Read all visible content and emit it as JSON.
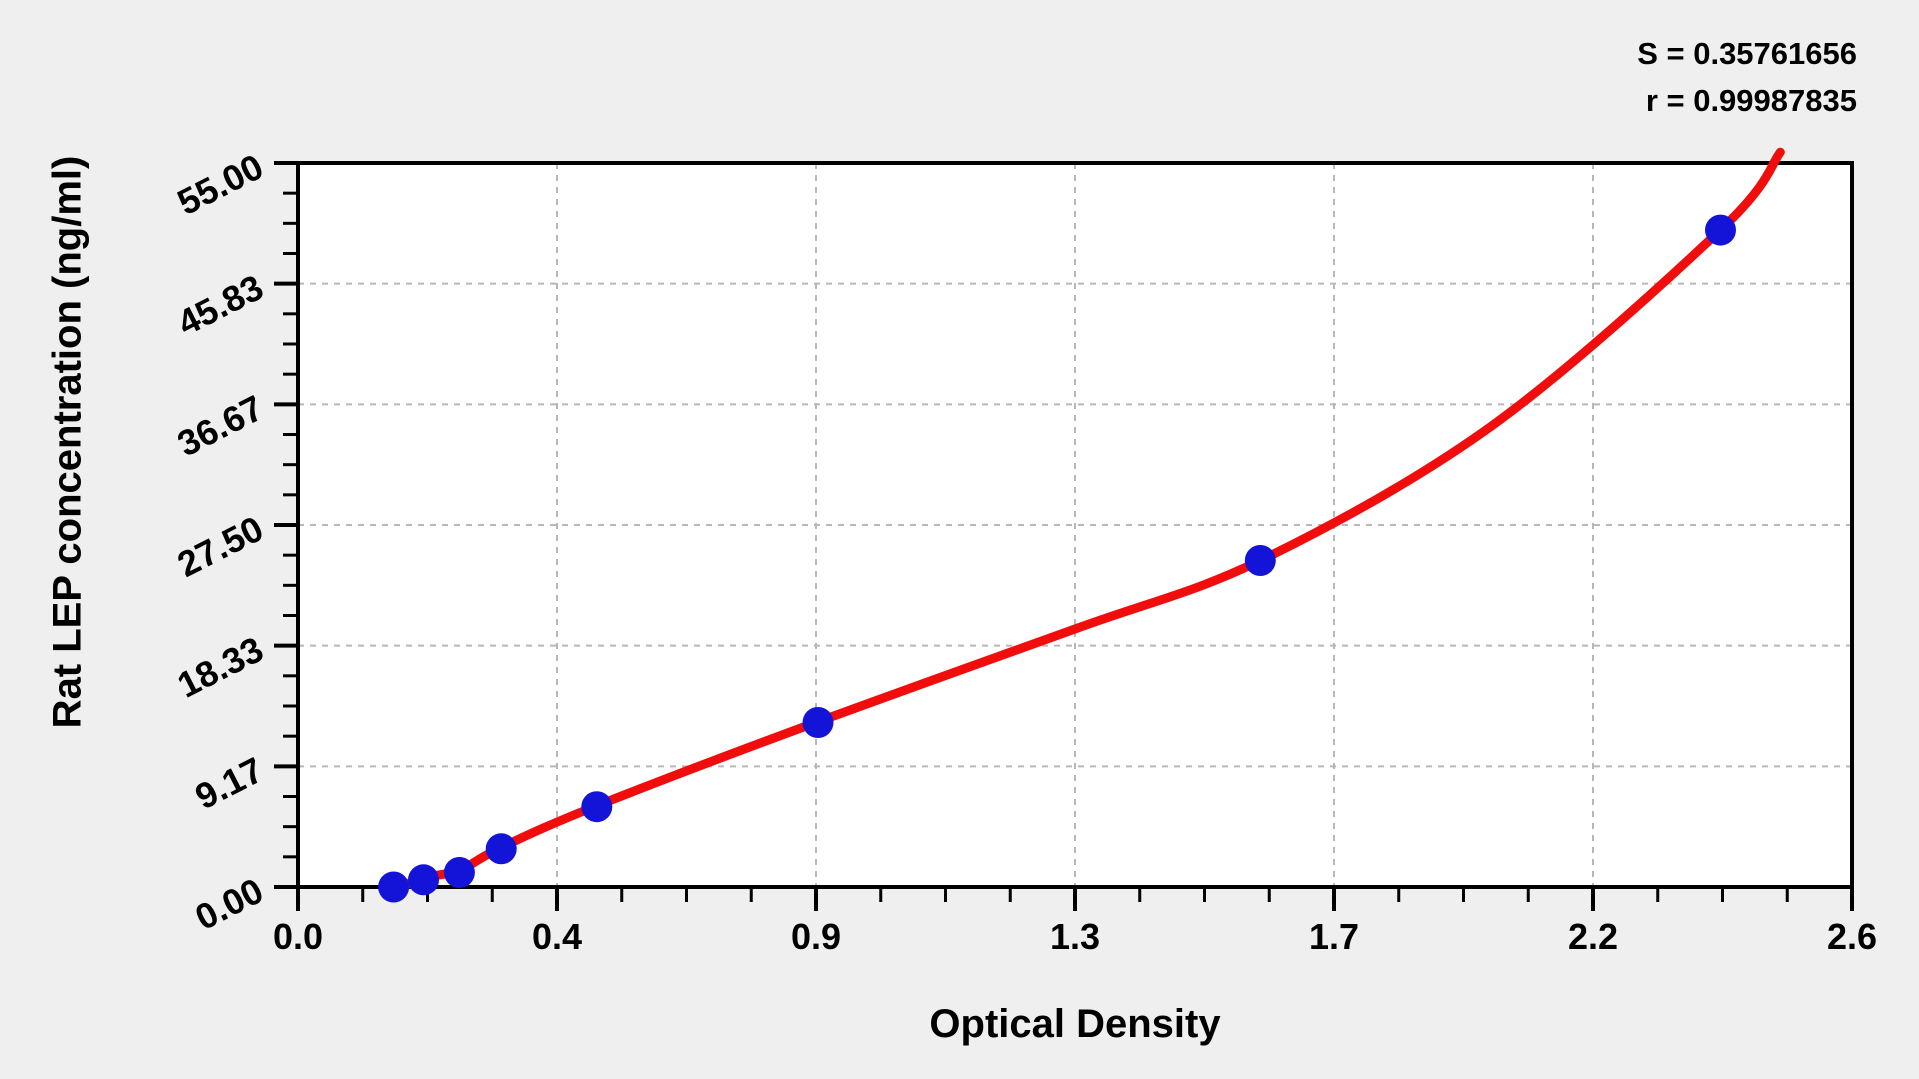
{
  "page": {
    "background": "#efefef",
    "plot_background": "#ffffff"
  },
  "stats": {
    "s_line": "S = 0.35761656",
    "r_line": "r = 0.99987835"
  },
  "chart_data": {
    "type": "scatter",
    "title": "",
    "xlabel": "Optical Density",
    "ylabel": "Rat LEP concentration (ng/ml)",
    "xlim": [
      0,
      2.6
    ],
    "ylim": [
      0,
      55
    ],
    "x_tick_labels": [
      "0.0",
      "0.4",
      "0.9",
      "1.3",
      "1.7",
      "2.2",
      "2.6"
    ],
    "y_tick_labels": [
      "0.00",
      "9.17",
      "18.33",
      "27.50",
      "36.67",
      "45.83",
      "55.00"
    ],
    "minor_divisions_per_major": 4,
    "grid": {
      "show": true,
      "style": "dashed",
      "color": "#b8b8b8",
      "at": "major-ticks"
    },
    "legend": "none",
    "fit_stats": {
      "S": 0.35761656,
      "r": 0.99987835
    },
    "series": [
      {
        "name": "standard-points",
        "type": "scatter",
        "color": "#1414d8",
        "marker_radius_px": 15.5,
        "points": [
          [
            0.16,
            0.0
          ],
          [
            0.21,
            0.55
          ],
          [
            0.27,
            1.1
          ],
          [
            0.34,
            2.9
          ],
          [
            0.5,
            6.1
          ],
          [
            0.87,
            12.5
          ],
          [
            1.61,
            24.8
          ],
          [
            2.38,
            49.9
          ]
        ]
      },
      {
        "name": "fitted-curve",
        "type": "line",
        "color": "#f20d0d",
        "stroke_width_px": 9,
        "points": [
          [
            0.166,
            -0.1
          ],
          [
            0.209,
            0.68
          ],
          [
            0.271,
            1.29
          ],
          [
            0.338,
            2.96
          ],
          [
            0.499,
            6.15
          ],
          [
            0.868,
            12.53
          ],
          [
            1.3,
            19.6
          ],
          [
            1.615,
            24.91
          ],
          [
            1.999,
            35.09
          ],
          [
            2.383,
            50.05
          ],
          [
            2.48,
            55.82
          ]
        ]
      }
    ]
  }
}
